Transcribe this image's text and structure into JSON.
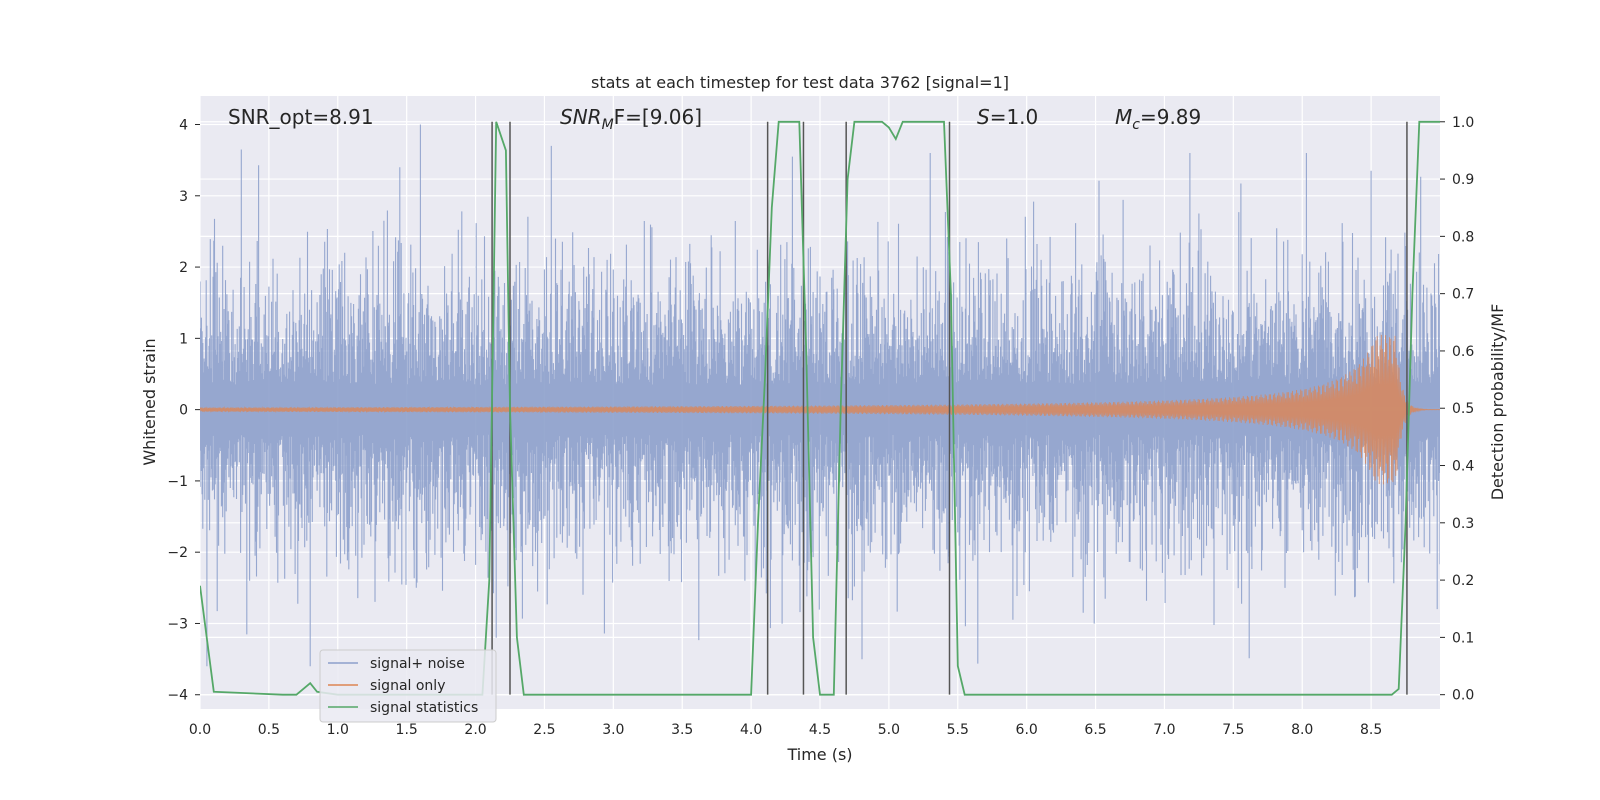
{
  "chart_data": {
    "type": "line",
    "title": "stats at each timestep for test data 3762 [signal=1]",
    "xlabel": "Time (s)",
    "ylabel": "Whitened strain",
    "y2label": "Detection probability/MF",
    "xlim": [
      0.0,
      9.0
    ],
    "ylim": [
      -4.2,
      4.4
    ],
    "y2lim": [
      -0.025,
      1.045
    ],
    "x_ticks": [
      0.0,
      0.5,
      1.0,
      1.5,
      2.0,
      2.5,
      3.0,
      3.5,
      4.0,
      4.5,
      5.0,
      5.5,
      6.0,
      6.5,
      7.0,
      7.5,
      8.0,
      8.5
    ],
    "y_ticks": [
      4,
      3,
      2,
      1,
      0,
      -1,
      -2,
      -3,
      -4
    ],
    "y2_ticks": [
      1.0,
      0.9,
      0.8,
      0.7,
      0.6,
      0.5,
      0.4,
      0.3,
      0.2,
      0.1,
      0.0
    ],
    "grid": true,
    "legend_position": "lower-left",
    "annotations": {
      "snr_opt": "SNR_opt=8.91",
      "snr_mf_sym": "SNR",
      "snr_mf_sub": "M",
      "snr_mf_rest": "F=[9.06]",
      "s_sym": "S",
      "s_rest": "=1.0",
      "mc_sym": "M",
      "mc_sub": "c",
      "mc_rest": "=9.89"
    },
    "series": [
      {
        "name": "signal+ noise",
        "color": "#8da0cb",
        "style": "gaussian noise, std ~0.95, whitened strain",
        "approx_peak_values": {
          "0.3": 3.65,
          "0.8": -3.6,
          "1.45": 3.4,
          "1.6": 4.0,
          "2.15": -3.2,
          "2.55": 3.7,
          "4.3": 3.55,
          "5.3": 3.6,
          "8.5": 3.35
        }
      },
      {
        "name": "signal only",
        "color": "#dd8452",
        "style": "chirp, amplitude grows toward merger",
        "merger_time": 8.68,
        "peak_amplitude": 1.05
      },
      {
        "name": "signal statistics",
        "color": "#55a868",
        "axis": "right",
        "x": [
          0.0,
          0.1,
          0.6,
          0.7,
          0.75,
          0.8,
          0.85,
          1.0,
          1.5,
          2.0,
          2.05,
          2.1,
          2.15,
          2.22,
          2.25,
          2.3,
          2.35,
          2.5,
          3.0,
          3.5,
          4.0,
          4.05,
          4.1,
          4.15,
          4.2,
          4.3,
          4.35,
          4.4,
          4.45,
          4.5,
          4.55,
          4.6,
          4.65,
          4.7,
          4.75,
          4.85,
          4.95,
          5.0,
          5.05,
          5.1,
          5.2,
          5.3,
          5.4,
          5.45,
          5.5,
          5.55,
          5.6,
          6.0,
          6.5,
          7.0,
          7.5,
          8.0,
          8.5,
          8.65,
          8.7,
          8.75,
          8.8,
          8.85,
          8.9,
          8.95,
          9.0
        ],
        "values": [
          0.19,
          0.005,
          0.0,
          0.0,
          0.01,
          0.02,
          0.005,
          0.0,
          0.0,
          0.0,
          0.0,
          0.2,
          1.0,
          0.95,
          0.5,
          0.1,
          0.0,
          0.0,
          0.0,
          0.0,
          0.0,
          0.3,
          0.55,
          0.85,
          1.0,
          1.0,
          1.0,
          0.6,
          0.1,
          0.0,
          0.0,
          0.0,
          0.5,
          0.9,
          1.0,
          1.0,
          1.0,
          0.99,
          0.97,
          1.0,
          1.0,
          1.0,
          1.0,
          0.7,
          0.05,
          0.0,
          0.0,
          0.0,
          0.0,
          0.0,
          0.0,
          0.0,
          0.0,
          0.0,
          0.01,
          0.3,
          0.7,
          1.0,
          1.0,
          1.0,
          1.0
        ]
      }
    ],
    "vertical_lines": {
      "color": "#555555",
      "x": [
        2.12,
        2.25,
        4.12,
        4.38,
        4.69,
        5.44,
        8.76
      ]
    }
  }
}
